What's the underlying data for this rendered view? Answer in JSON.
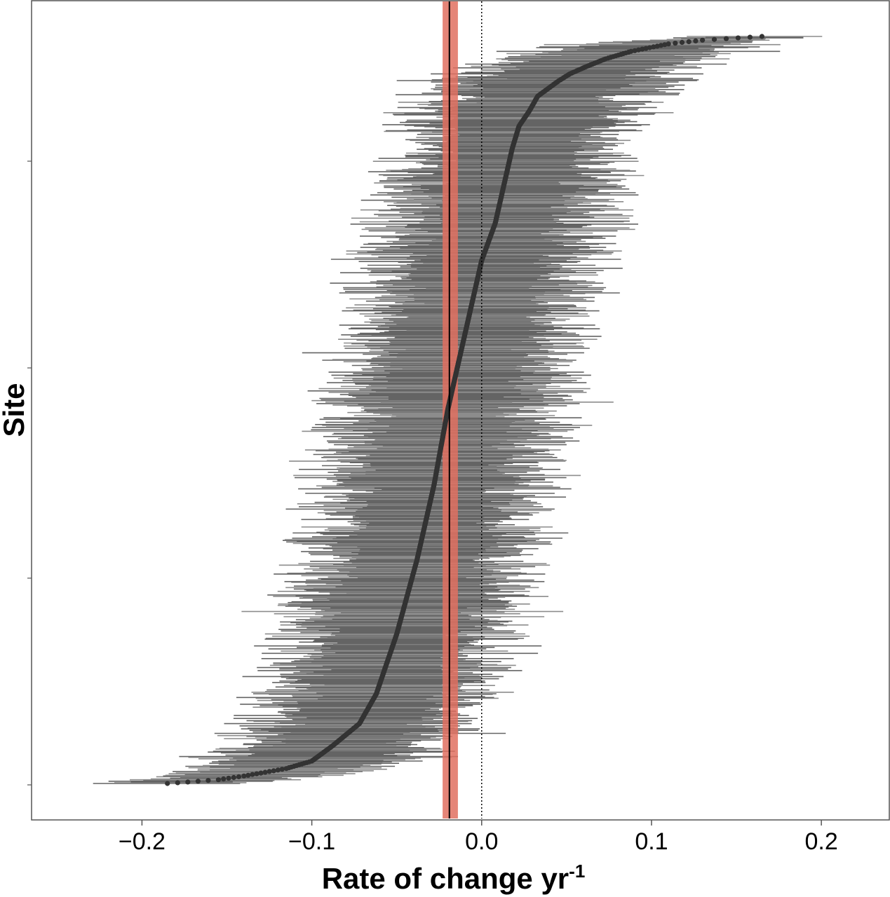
{
  "chart_data": {
    "type": "scatter",
    "title": "",
    "xlabel": "Rate of change yr",
    "xlabel_superscript": "-1",
    "ylabel": "Site",
    "xlim": [
      -0.265,
      0.24
    ],
    "x_ticks": [
      -0.2,
      -0.1,
      0.0,
      0.1,
      0.2
    ],
    "x_tick_labels": [
      "−0.2",
      "−0.1",
      "0.0",
      "0.1",
      "0.2"
    ],
    "n_sites": 1000,
    "grid": false,
    "legend": "none",
    "point_estimate_quantiles": {
      "p": [
        0,
        0.005,
        0.01,
        0.02,
        0.03,
        0.05,
        0.08,
        0.12,
        0.2,
        0.3,
        0.4,
        0.5,
        0.6,
        0.7,
        0.75,
        0.8,
        0.85,
        0.88,
        0.9,
        0.92,
        0.94,
        0.95,
        0.96,
        0.97,
        0.98,
        0.99,
        0.995,
        1
      ],
      "x": [
        -0.185,
        -0.155,
        -0.14,
        -0.115,
        -0.1,
        -0.088,
        -0.072,
        -0.062,
        -0.05,
        -0.038,
        -0.028,
        -0.02,
        -0.01,
        0.0,
        0.008,
        0.013,
        0.018,
        0.022,
        0.028,
        0.033,
        0.045,
        0.052,
        0.062,
        0.073,
        0.088,
        0.11,
        0.13,
        0.165
      ]
    },
    "interval_half_width": {
      "min": 0.025,
      "max": 0.085,
      "typical": 0.055
    },
    "mean_rate": -0.019,
    "mean_ci": [
      -0.023,
      -0.014
    ],
    "reference_line": 0.0,
    "colors": {
      "interval": "#646464",
      "interval_light": "#8c8c8c",
      "point": "#333333",
      "mean_line": "#000000",
      "mean_band": "#e07060",
      "reference": "#000000",
      "frame": "#555555"
    }
  }
}
